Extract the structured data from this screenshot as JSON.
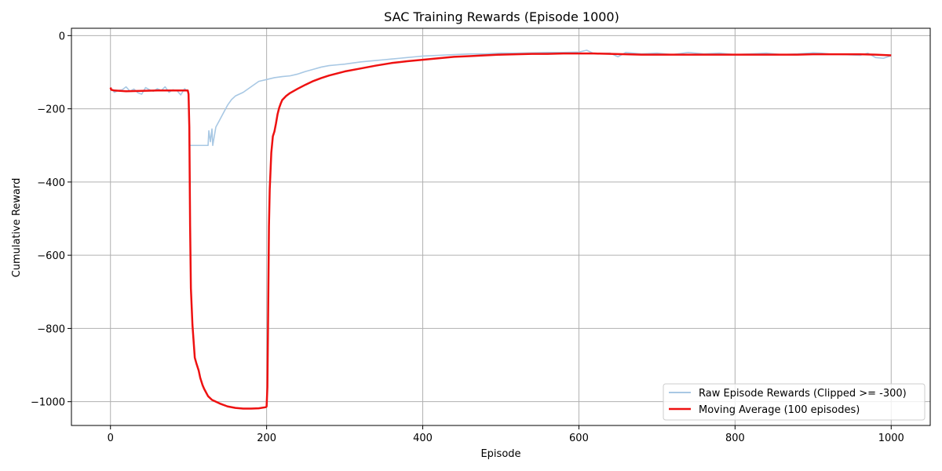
{
  "chart_data": {
    "type": "line",
    "title": "SAC Training Rewards (Episode 1000)",
    "xlabel": "Episode",
    "ylabel": "Cumulative Reward",
    "xlim": [
      -50,
      1050
    ],
    "ylim": [
      -1065,
      20
    ],
    "xticks": [
      0,
      200,
      400,
      600,
      800,
      1000
    ],
    "yticks": [
      0,
      -200,
      -400,
      -600,
      -800,
      -1000
    ],
    "xtick_labels": [
      "0",
      "200",
      "400",
      "600",
      "800",
      "1000"
    ],
    "ytick_labels": [
      "0",
      "−200",
      "−400",
      "−600",
      "−800",
      "−1000"
    ],
    "grid": true,
    "legend_position": "lower-right",
    "series": [
      {
        "name": "Raw Episode Rewards (Clipped >= -300)",
        "color": "#a8c8e4",
        "style": "thin",
        "x": [
          0,
          5,
          10,
          15,
          20,
          25,
          30,
          35,
          40,
          45,
          50,
          55,
          60,
          65,
          70,
          75,
          80,
          85,
          90,
          95,
          100,
          101,
          110,
          120,
          125,
          126,
          128,
          130,
          131,
          135,
          140,
          145,
          150,
          155,
          160,
          170,
          180,
          190,
          200,
          210,
          220,
          230,
          240,
          250,
          260,
          270,
          280,
          290,
          300,
          310,
          320,
          330,
          340,
          350,
          360,
          370,
          380,
          390,
          400,
          420,
          440,
          460,
          480,
          500,
          520,
          540,
          560,
          580,
          600,
          610,
          620,
          640,
          650,
          660,
          680,
          700,
          720,
          740,
          760,
          780,
          800,
          820,
          840,
          860,
          880,
          900,
          910,
          920,
          940,
          960,
          970,
          980,
          990,
          1000
        ],
        "y": [
          -142,
          -155,
          -150,
          -148,
          -140,
          -152,
          -146,
          -156,
          -160,
          -142,
          -148,
          -152,
          -145,
          -150,
          -140,
          -155,
          -148,
          -150,
          -162,
          -145,
          -155,
          -300,
          -300,
          -300,
          -300,
          -260,
          -290,
          -255,
          -300,
          -250,
          -230,
          -210,
          -190,
          -175,
          -165,
          -155,
          -140,
          -125,
          -120,
          -115,
          -112,
          -110,
          -105,
          -98,
          -92,
          -86,
          -82,
          -80,
          -78,
          -75,
          -72,
          -70,
          -68,
          -66,
          -64,
          -62,
          -60,
          -58,
          -56,
          -54,
          -52,
          -50,
          -50,
          -48,
          -48,
          -47,
          -46,
          -46,
          -45,
          -40,
          -50,
          -48,
          -58,
          -46,
          -50,
          -48,
          -52,
          -46,
          -50,
          -48,
          -52,
          -50,
          -48,
          -52,
          -50,
          -47,
          -48,
          -50,
          -52,
          -54,
          -48,
          -60,
          -62,
          -55
        ]
      },
      {
        "name": "Moving Average (100 episodes)",
        "color": "#ee1111",
        "style": "thick",
        "x": [
          0,
          1,
          5,
          20,
          40,
          60,
          80,
          99,
          100,
          101,
          102,
          103,
          105,
          108,
          110,
          113,
          115,
          118,
          120,
          125,
          130,
          140,
          150,
          160,
          170,
          180,
          190,
          199,
          200,
          201,
          202,
          203,
          204,
          205,
          206,
          208,
          210,
          212,
          214,
          216,
          218,
          220,
          225,
          230,
          240,
          250,
          260,
          270,
          280,
          300,
          320,
          340,
          360,
          380,
          400,
          420,
          440,
          460,
          480,
          500,
          520,
          540,
          560,
          580,
          600,
          620,
          640,
          660,
          680,
          700,
          720,
          740,
          760,
          780,
          800,
          820,
          840,
          860,
          880,
          900,
          920,
          940,
          960,
          980,
          1000
        ],
        "y": [
          -142,
          -148,
          -150,
          -152,
          -151,
          -150,
          -150,
          -150,
          -160,
          -250,
          -520,
          -690,
          -790,
          -880,
          -895,
          -915,
          -935,
          -955,
          -965,
          -985,
          -995,
          -1005,
          -1013,
          -1017,
          -1019,
          -1019,
          -1018,
          -1015,
          -1013,
          -960,
          -750,
          -520,
          -420,
          -370,
          -320,
          -275,
          -262,
          -240,
          -215,
          -198,
          -186,
          -176,
          -165,
          -157,
          -145,
          -134,
          -124,
          -116,
          -109,
          -98,
          -90,
          -82,
          -75,
          -70,
          -66,
          -62,
          -58,
          -56,
          -54,
          -52,
          -51,
          -50,
          -50,
          -49,
          -49,
          -49,
          -50,
          -51,
          -52,
          -52,
          -52,
          -52,
          -52,
          -52,
          -52,
          -52,
          -52,
          -52,
          -52,
          -51,
          -51,
          -51,
          -51,
          -52,
          -54
        ]
      }
    ]
  }
}
